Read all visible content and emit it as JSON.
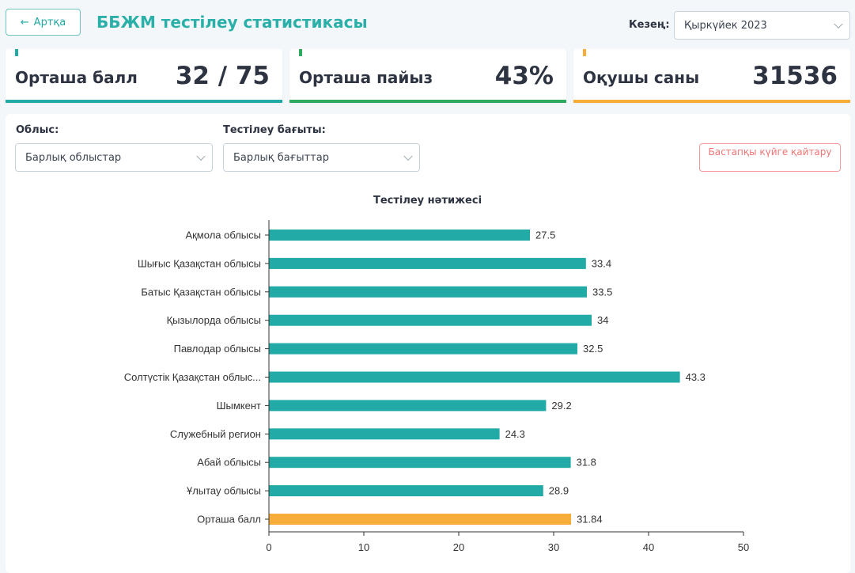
{
  "header": {
    "back_label": "Артқа",
    "title": "ББЖМ тестілеу статистикасы",
    "period_label": "Кезең:",
    "period_value": "Қыркүйек 2023"
  },
  "cards": [
    {
      "label": "Орташа балл",
      "value": "32 / 75",
      "color": "#22aaa6"
    },
    {
      "label": "Орташа пайыз",
      "value": "43%",
      "color": "#2eaa5e"
    },
    {
      "label": "Оқушы саны",
      "value": "31536",
      "color": "#f8ac3a"
    }
  ],
  "filters": {
    "region_label": "Облыс:",
    "region_value": "Барлық облыстар",
    "direction_label": "Тестілеу бағыты:",
    "direction_value": "Барлық бағыттар",
    "reset_label": "Бастапқы күйге қайтару"
  },
  "chart_data": {
    "type": "bar",
    "orientation": "horizontal",
    "title": "Тестілеу нәтижесі",
    "categories": [
      "Ақмола облысы",
      "Шығыс Қазақстан облысы",
      "Батыс Қазақстан облысы",
      "Қызылорда облысы",
      "Павлодар облысы",
      "Солтүстік Қазақстан облыс...",
      "Шымкент",
      "Служебный регион",
      "Абай облысы",
      "Ұлытау облысы",
      "Орташа балл"
    ],
    "values": [
      27.5,
      33.4,
      33.5,
      34,
      32.5,
      43.3,
      29.2,
      24.3,
      31.8,
      28.9,
      31.84
    ],
    "value_labels": [
      "27.5",
      "33.4",
      "33.5",
      "34",
      "32.5",
      "43.3",
      "29.2",
      "24.3",
      "31.8",
      "28.9",
      "31.84"
    ],
    "bar_colors": [
      "#22aaa6",
      "#22aaa6",
      "#22aaa6",
      "#22aaa6",
      "#22aaa6",
      "#22aaa6",
      "#22aaa6",
      "#22aaa6",
      "#22aaa6",
      "#22aaa6",
      "#f8ac3a"
    ],
    "xlim": [
      0,
      50
    ],
    "xticks": [
      "0",
      "10",
      "20",
      "30",
      "40",
      "50"
    ],
    "grid": false
  }
}
